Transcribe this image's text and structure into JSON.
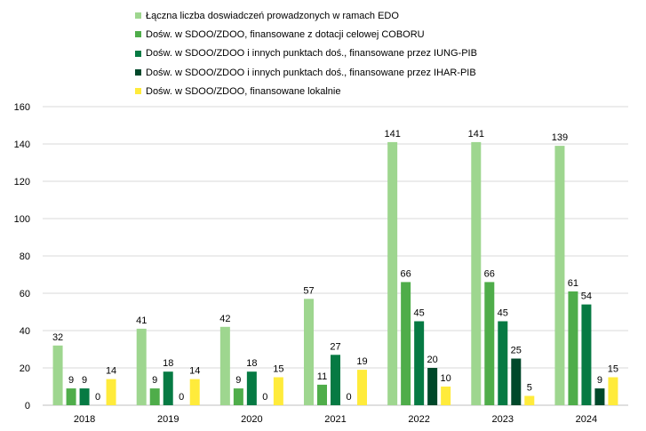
{
  "chart_data": {
    "type": "bar",
    "title": "",
    "xlabel": "",
    "ylabel": "",
    "ylim": [
      0,
      160
    ],
    "yticks": [
      0,
      20,
      40,
      60,
      80,
      100,
      120,
      140,
      160
    ],
    "grid": true,
    "legend_position": "top",
    "categories": [
      "2018",
      "2019",
      "2020",
      "2021",
      "2022",
      "2023",
      "2024"
    ],
    "series": [
      {
        "name": "Łączna liczba doswiadczeń prowadzonych w ramach EDO",
        "color": "#9ed68f",
        "values": [
          32,
          41,
          42,
          57,
          141,
          141,
          139
        ]
      },
      {
        "name": "Dośw. w SDOO/ZDOO, finansowane z dotacji celowej COBORU",
        "color": "#4fad4a",
        "values": [
          9,
          9,
          9,
          11,
          66,
          66,
          61
        ]
      },
      {
        "name": "Dośw. w SDOO/ZDOO i innych punktach doś., finansowane przez IUNG-PIB",
        "color": "#067a43",
        "values": [
          9,
          18,
          18,
          27,
          45,
          45,
          54
        ]
      },
      {
        "name": "Dośw. w SDOO/ZDOO i innych punktach doś., finansowane przez IHAR-PIB",
        "color": "#00482a",
        "values": [
          0,
          0,
          0,
          0,
          20,
          25,
          9
        ]
      },
      {
        "name": "Dośw. w SDOO/ZDOO, finansowane lokalnie",
        "color": "#ffeb3b",
        "values": [
          14,
          14,
          15,
          19,
          10,
          5,
          15
        ]
      }
    ]
  }
}
